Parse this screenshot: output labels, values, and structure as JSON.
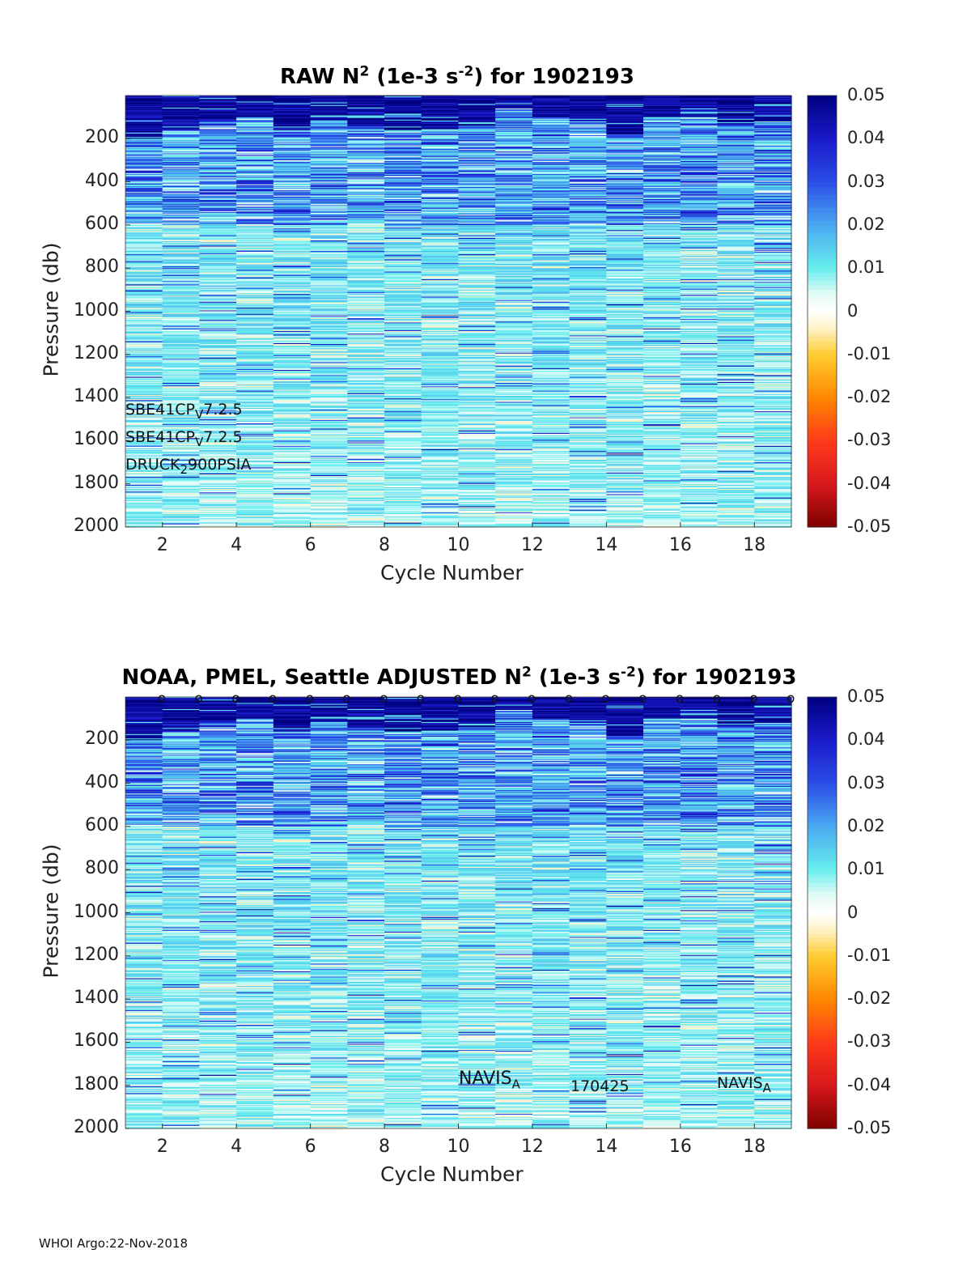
{
  "footer": "WHOI Argo:22-Nov-2018",
  "colormap_stops": [
    {
      "v": -0.05,
      "c": "#7f0000"
    },
    {
      "v": -0.04,
      "c": "#d7191c"
    },
    {
      "v": -0.03,
      "c": "#ff3b1a"
    },
    {
      "v": -0.02,
      "c": "#ff8800"
    },
    {
      "v": -0.01,
      "c": "#ffcc33"
    },
    {
      "v": -0.004,
      "c": "#fff2c6"
    },
    {
      "v": 0.0,
      "c": "#ffffff"
    },
    {
      "v": 0.004,
      "c": "#e4fbf6"
    },
    {
      "v": 0.01,
      "c": "#66eeee"
    },
    {
      "v": 0.02,
      "c": "#4aa8f0"
    },
    {
      "v": 0.03,
      "c": "#2a4de6"
    },
    {
      "v": 0.04,
      "c": "#1a1ac8"
    },
    {
      "v": 0.05,
      "c": "#000080"
    }
  ],
  "chart_data": [
    {
      "type": "heatmap",
      "title_pre": "RAW N",
      "title_sup1": "2",
      "title_mid": " (1e-3 s",
      "title_sup2": "-2",
      "title_post": ") for 1902193",
      "xlabel": "Cycle Number",
      "ylabel": "Pressure (db)",
      "xlim": [
        1,
        19
      ],
      "ylim": [
        2000,
        0
      ],
      "xticks": [
        2,
        4,
        6,
        8,
        10,
        12,
        14,
        16,
        18
      ],
      "yticks": [
        200,
        400,
        600,
        800,
        1000,
        1200,
        1400,
        1600,
        1800,
        2000
      ],
      "clim": [
        -0.05,
        0.05
      ],
      "colorbar_ticks": [
        "0.05",
        "0.04",
        "0.03",
        "0.02",
        "0.01",
        "0",
        "-0.01",
        "-0.02",
        "-0.03",
        "-0.04",
        "-0.05"
      ],
      "cycles": [
        1,
        2,
        3,
        4,
        5,
        6,
        7,
        8,
        9,
        10,
        11,
        12,
        13,
        14,
        15,
        16,
        17,
        18
      ],
      "surface_strong_depth_db": [
        200,
        160,
        120,
        100,
        160,
        120,
        140,
        160,
        160,
        140,
        60,
        100,
        120,
        180,
        100,
        100,
        140,
        120
      ],
      "deep_mean_value": 0.007,
      "annotations": [
        {
          "base": "SBE41CP",
          "sub": "V",
          "rest": "7.2.5"
        },
        {
          "base": "SBE41CP",
          "sub": "V",
          "rest": "7.2.5"
        },
        {
          "base": "DRUCK",
          "sub": "2",
          "rest": "900PSIA"
        }
      ]
    },
    {
      "type": "heatmap",
      "title_pre": "NOAA, PMEL, Seattle  ADJUSTED N",
      "title_sup1": "2",
      "title_mid": " (1e-3 s",
      "title_sup2": "-2",
      "title_post": ") for 1902193",
      "xlabel": "Cycle Number",
      "ylabel": "Pressure (db)",
      "xlim": [
        1,
        19
      ],
      "ylim": [
        2000,
        0
      ],
      "xticks": [
        2,
        4,
        6,
        8,
        10,
        12,
        14,
        16,
        18
      ],
      "yticks": [
        200,
        400,
        600,
        800,
        1000,
        1200,
        1400,
        1600,
        1800,
        2000
      ],
      "clim": [
        -0.05,
        0.05
      ],
      "colorbar_ticks": [
        "0.05",
        "0.04",
        "0.03",
        "0.02",
        "0.01",
        "0",
        "-0.01",
        "-0.02",
        "-0.03",
        "-0.04",
        "-0.05"
      ],
      "cycles": [
        1,
        2,
        3,
        4,
        5,
        6,
        7,
        8,
        9,
        10,
        11,
        12,
        13,
        14,
        15,
        16,
        17,
        18
      ],
      "surface_strong_depth_db": [
        200,
        160,
        120,
        100,
        160,
        120,
        140,
        160,
        160,
        140,
        60,
        100,
        120,
        180,
        100,
        100,
        140,
        120
      ],
      "deep_mean_value": 0.007,
      "marker_cycles": [
        2,
        3,
        4,
        5,
        6,
        7,
        8,
        9,
        10,
        11,
        12,
        13,
        14,
        15,
        16,
        17,
        18,
        19
      ],
      "marker_symbol": "o",
      "annotations": [
        {
          "base": "NAVIS",
          "sub": "A",
          "rest": ""
        },
        {
          "base": "170425",
          "sub": "",
          "rest": ""
        },
        {
          "base": "NAVIS",
          "sub": "A",
          "rest": ""
        }
      ]
    }
  ]
}
